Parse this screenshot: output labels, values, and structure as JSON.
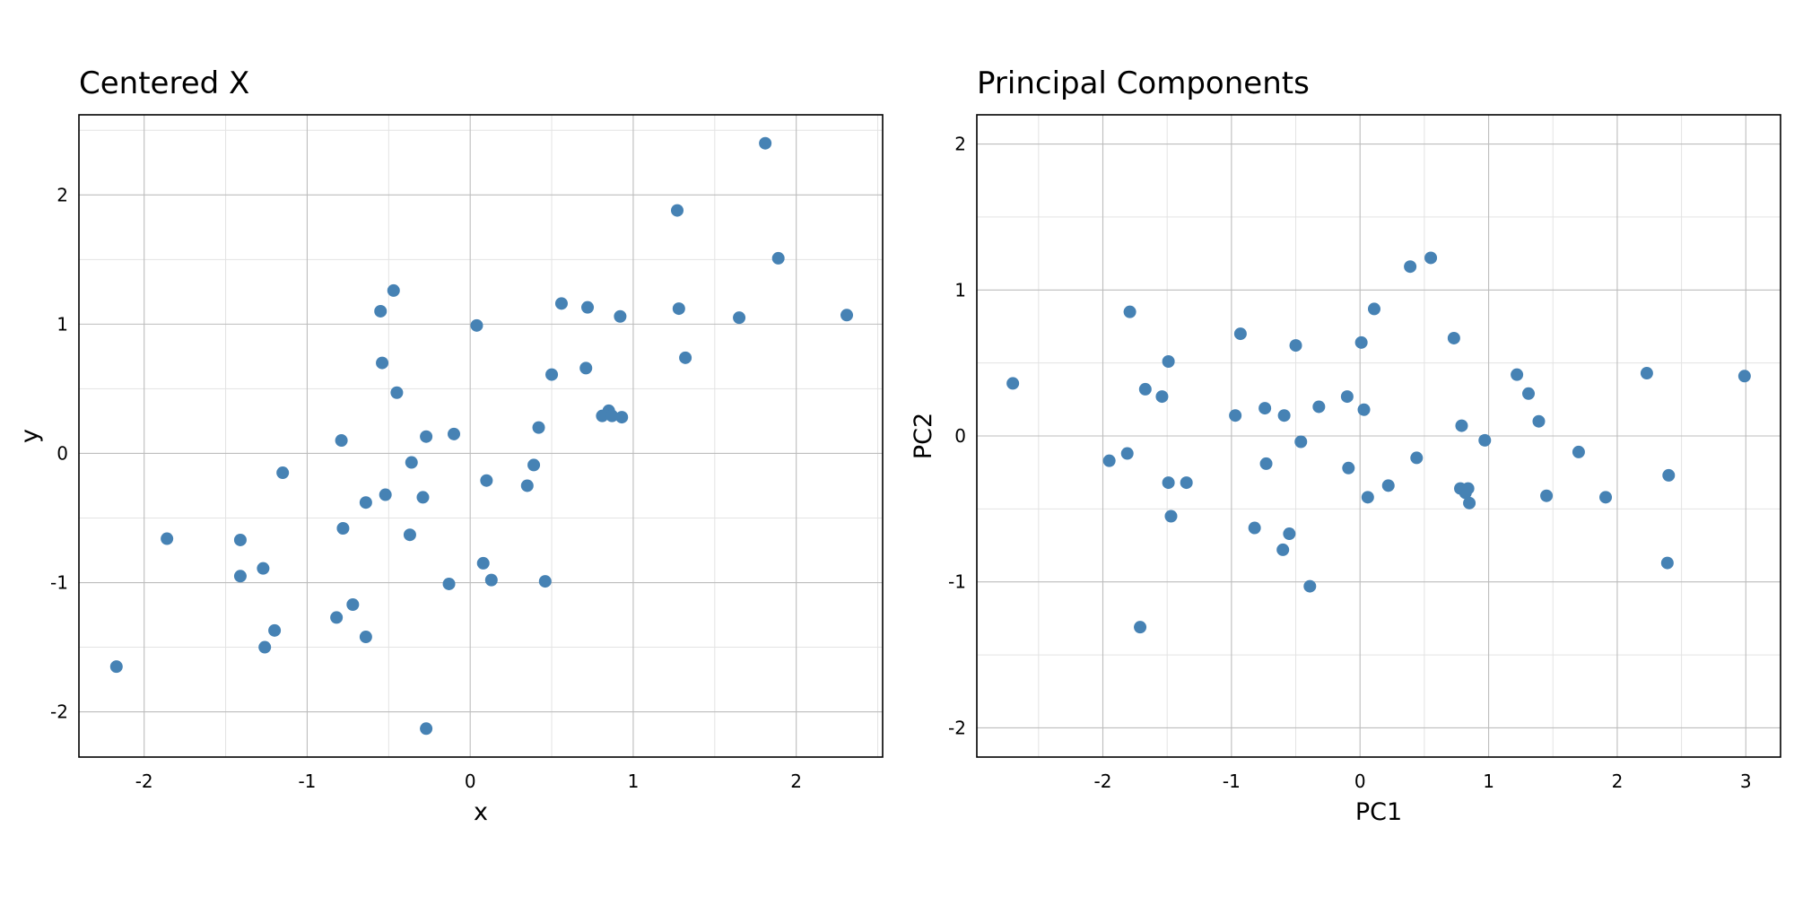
{
  "chart_data": [
    {
      "type": "scatter",
      "title": "Centered X",
      "xlabel": "x",
      "ylabel": "y",
      "xlim": [
        -2.4,
        2.53
      ],
      "ylim": [
        -2.35,
        2.62
      ],
      "xticks": [
        -2,
        -1,
        0,
        1,
        2
      ],
      "yticks": [
        -2,
        -1,
        0,
        1,
        2
      ],
      "xtick_labels": [
        "-2",
        "-1",
        "0",
        "1",
        "2"
      ],
      "ytick_labels": [
        "-2",
        "-1",
        "0",
        "1",
        "2"
      ],
      "grid": true,
      "color": "#4682b4",
      "points": [
        {
          "x": -2.17,
          "y": -1.65
        },
        {
          "x": -1.86,
          "y": -0.66
        },
        {
          "x": -1.41,
          "y": -0.67
        },
        {
          "x": -1.41,
          "y": -0.95
        },
        {
          "x": -1.27,
          "y": -0.89
        },
        {
          "x": -1.26,
          "y": -1.5
        },
        {
          "x": -1.2,
          "y": -1.37
        },
        {
          "x": -1.15,
          "y": -0.15
        },
        {
          "x": -0.82,
          "y": -1.27
        },
        {
          "x": -0.79,
          "y": 0.1
        },
        {
          "x": -0.78,
          "y": -0.58
        },
        {
          "x": -0.72,
          "y": -1.17
        },
        {
          "x": -0.64,
          "y": -0.38
        },
        {
          "x": -0.64,
          "y": -1.42
        },
        {
          "x": -0.55,
          "y": 1.1
        },
        {
          "x": -0.54,
          "y": 0.7
        },
        {
          "x": -0.52,
          "y": -0.32
        },
        {
          "x": -0.47,
          "y": 1.26
        },
        {
          "x": -0.45,
          "y": 0.47
        },
        {
          "x": -0.37,
          "y": -0.63
        },
        {
          "x": -0.36,
          "y": -0.07
        },
        {
          "x": -0.29,
          "y": -0.34
        },
        {
          "x": -0.27,
          "y": 0.13
        },
        {
          "x": -0.27,
          "y": -2.13
        },
        {
          "x": -0.13,
          "y": -1.01
        },
        {
          "x": -0.1,
          "y": 0.15
        },
        {
          "x": 0.04,
          "y": 0.99
        },
        {
          "x": 0.08,
          "y": -0.85
        },
        {
          "x": 0.1,
          "y": -0.21
        },
        {
          "x": 0.13,
          "y": -0.98
        },
        {
          "x": 0.35,
          "y": -0.25
        },
        {
          "x": 0.39,
          "y": -0.09
        },
        {
          "x": 0.42,
          "y": 0.2
        },
        {
          "x": 0.46,
          "y": -0.99
        },
        {
          "x": 0.5,
          "y": 0.61
        },
        {
          "x": 0.56,
          "y": 1.16
        },
        {
          "x": 0.71,
          "y": 0.66
        },
        {
          "x": 0.72,
          "y": 1.13
        },
        {
          "x": 0.81,
          "y": 0.29
        },
        {
          "x": 0.85,
          "y": 0.33
        },
        {
          "x": 0.87,
          "y": 0.29
        },
        {
          "x": 0.92,
          "y": 1.06
        },
        {
          "x": 0.93,
          "y": 0.28
        },
        {
          "x": 1.27,
          "y": 1.88
        },
        {
          "x": 1.28,
          "y": 1.12
        },
        {
          "x": 1.32,
          "y": 0.74
        },
        {
          "x": 1.65,
          "y": 1.05
        },
        {
          "x": 1.81,
          "y": 2.4
        },
        {
          "x": 1.89,
          "y": 1.51
        },
        {
          "x": 2.31,
          "y": 1.07
        }
      ]
    },
    {
      "type": "scatter",
      "title": "Principal Components",
      "xlabel": "PC1",
      "ylabel": "PC2",
      "xlim": [
        -2.98,
        3.27
      ],
      "ylim": [
        -2.2,
        2.2
      ],
      "xticks": [
        -2,
        -1,
        0,
        1,
        2,
        3
      ],
      "yticks": [
        -2,
        -1,
        0,
        1,
        2
      ],
      "xtick_labels": [
        "-2",
        "-1",
        "0",
        "1",
        "2",
        "3"
      ],
      "ytick_labels": [
        "-2",
        "-1",
        "0",
        "1",
        "2"
      ],
      "grid": true,
      "color": "#4682b4",
      "points": [
        {
          "x": -2.7,
          "y": 0.36
        },
        {
          "x": -1.95,
          "y": -0.17
        },
        {
          "x": -1.81,
          "y": -0.12
        },
        {
          "x": -1.79,
          "y": 0.85
        },
        {
          "x": -1.71,
          "y": -1.31
        },
        {
          "x": -1.67,
          "y": 0.32
        },
        {
          "x": -1.54,
          "y": 0.27
        },
        {
          "x": -1.49,
          "y": 0.51
        },
        {
          "x": -1.49,
          "y": -0.32
        },
        {
          "x": -1.47,
          "y": -0.55
        },
        {
          "x": -1.35,
          "y": -0.32
        },
        {
          "x": -0.97,
          "y": 0.14
        },
        {
          "x": -0.93,
          "y": 0.7
        },
        {
          "x": -0.82,
          "y": -0.63
        },
        {
          "x": -0.74,
          "y": 0.19
        },
        {
          "x": -0.73,
          "y": -0.19
        },
        {
          "x": -0.6,
          "y": -0.78
        },
        {
          "x": -0.59,
          "y": 0.14
        },
        {
          "x": -0.55,
          "y": -0.67
        },
        {
          "x": -0.5,
          "y": 0.62
        },
        {
          "x": -0.46,
          "y": -0.04
        },
        {
          "x": -0.39,
          "y": -1.03
        },
        {
          "x": -0.32,
          "y": 0.2
        },
        {
          "x": -0.1,
          "y": 0.27
        },
        {
          "x": -0.09,
          "y": -0.22
        },
        {
          "x": 0.01,
          "y": 0.64
        },
        {
          "x": 0.03,
          "y": 0.18
        },
        {
          "x": 0.06,
          "y": -0.42
        },
        {
          "x": 0.11,
          "y": 0.87
        },
        {
          "x": 0.22,
          "y": -0.34
        },
        {
          "x": 0.39,
          "y": 1.16
        },
        {
          "x": 0.44,
          "y": -0.15
        },
        {
          "x": 0.55,
          "y": 1.22
        },
        {
          "x": 0.73,
          "y": 0.67
        },
        {
          "x": 0.78,
          "y": -0.36
        },
        {
          "x": 0.79,
          "y": 0.07
        },
        {
          "x": 0.82,
          "y": -0.39
        },
        {
          "x": 0.84,
          "y": -0.36
        },
        {
          "x": 0.85,
          "y": -0.46
        },
        {
          "x": 0.97,
          "y": -0.03
        },
        {
          "x": 1.22,
          "y": 0.42
        },
        {
          "x": 1.31,
          "y": 0.29
        },
        {
          "x": 1.39,
          "y": 0.1
        },
        {
          "x": 1.45,
          "y": -0.41
        },
        {
          "x": 1.7,
          "y": -0.11
        },
        {
          "x": 1.91,
          "y": -0.42
        },
        {
          "x": 2.23,
          "y": 0.43
        },
        {
          "x": 2.39,
          "y": -0.87
        },
        {
          "x": 2.4,
          "y": -0.27
        },
        {
          "x": 2.99,
          "y": 0.41
        }
      ]
    }
  ]
}
